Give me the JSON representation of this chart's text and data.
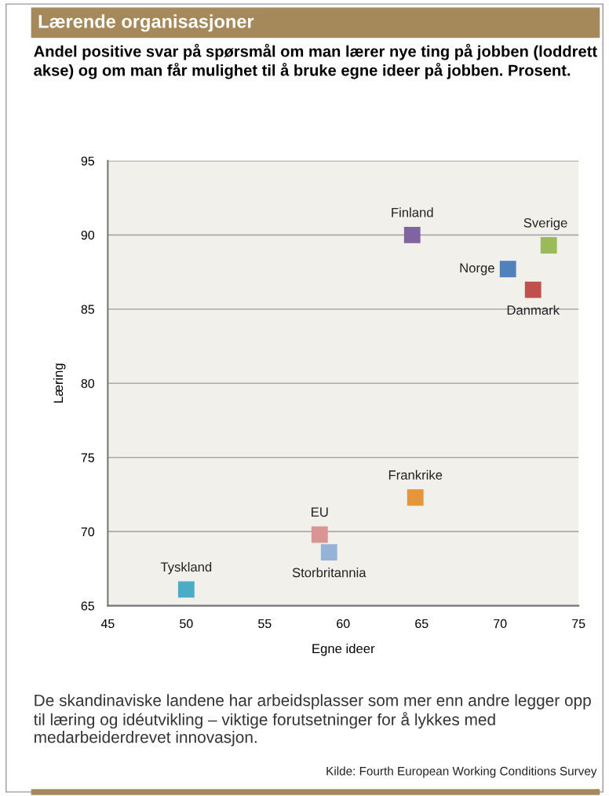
{
  "chart_data": {
    "type": "scatter",
    "title": "Lærende organisasjoner",
    "subtitle": "Andel positive svar på spørsmål om man lærer nye ting på jobben (loddrett akse) og om man får mulighet til å bruke egne ideer på jobben. Prosent.",
    "xlabel": "Egne ideer",
    "ylabel": "Læring",
    "xlim": [
      45,
      75
    ],
    "xticks": [
      45,
      50,
      55,
      60,
      65,
      70,
      75
    ],
    "ylim": [
      65,
      95
    ],
    "yticks": [
      65,
      70,
      75,
      80,
      85,
      90,
      95
    ],
    "grid": "y",
    "marker": "square",
    "legend": false,
    "series": [
      {
        "name": "Finland",
        "color": "#8064a2",
        "x": [
          64.4
        ],
        "values": [
          90.0
        ]
      },
      {
        "name": "Sverige",
        "color": "#9bbb59",
        "x": [
          73.1
        ],
        "values": [
          89.3
        ]
      },
      {
        "name": "Norge",
        "color": "#4f81bd",
        "x": [
          70.5
        ],
        "values": [
          87.7
        ]
      },
      {
        "name": "Danmark",
        "color": "#c0504d",
        "x": [
          72.1
        ],
        "values": [
          86.3
        ]
      },
      {
        "name": "Frankrike",
        "color": "#e4963a",
        "x": [
          64.6
        ],
        "values": [
          72.3
        ]
      },
      {
        "name": "EU",
        "color": "#d99594",
        "x": [
          58.5
        ],
        "values": [
          69.8
        ]
      },
      {
        "name": "Storbritannia",
        "color": "#95b3d7",
        "x": [
          59.1
        ],
        "values": [
          68.6
        ]
      },
      {
        "name": "Tyskland",
        "color": "#4bacc6",
        "x": [
          50.0
        ],
        "values": [
          66.1
        ]
      }
    ],
    "annotations": [
      "De skandinaviske landene har arbeidsplasser som mer enn andre legger opp til læring og idéutvikling – viktige forutsetninger for å lykkes med medarbeiderdrevet innovasjon.",
      "Kilde: Fourth European Working Conditions Survey"
    ]
  }
}
